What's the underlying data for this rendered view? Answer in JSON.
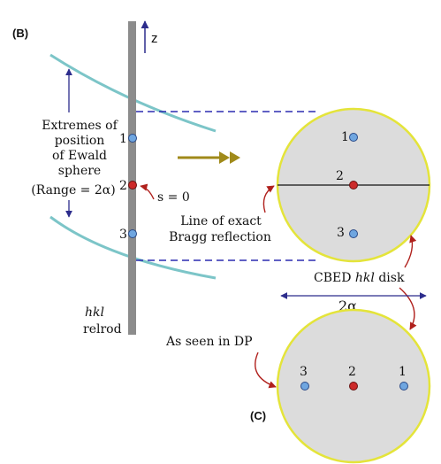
{
  "panel_labels": {
    "b": "(B)",
    "c": "(C)"
  },
  "axis": {
    "z_label": "z"
  },
  "relrod": {
    "line1": "hkl",
    "line2": "relrod"
  },
  "ewald": {
    "line1": "Extremes of",
    "line2": "position",
    "line3": "of Ewald",
    "line4": "sphere",
    "range": "(Range = 2α)"
  },
  "s_label": "s = 0",
  "points": {
    "p1": "1",
    "p2": "2",
    "p3": "3"
  },
  "disk_top": {
    "p1": "1",
    "p2": "2",
    "p3": "3"
  },
  "bragg": {
    "line1": "Line of exact",
    "line2": "Bragg reflection"
  },
  "cbed": {
    "prefix": "CBED ",
    "hkl": "hkl",
    "suffix": " disk"
  },
  "two_alpha": "2α",
  "as_seen": "As seen in DP",
  "disk_bottom": {
    "p3": "3",
    "p2": "2",
    "p1": "1"
  },
  "colors": {
    "rod": "#8c8c8c",
    "ewald": "#7cc5c8",
    "disk_fill": "#dcdcdc",
    "disk_stroke": "#e4e43a",
    "dashed": "#2b2bb0",
    "arrow_blue": "#2c2c8c",
    "arrow_red": "#b0201c",
    "arrow_gold": "#a08a1a",
    "dot_blue": "#6fa6e0",
    "dot_red": "#cc2a2a"
  }
}
